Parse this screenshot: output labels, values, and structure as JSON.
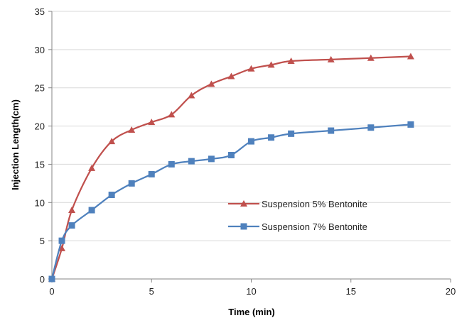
{
  "chart_data": {
    "type": "line",
    "title": "",
    "xlabel": "Time (min)",
    "ylabel": "Injection Length(cm)",
    "xlim": [
      0,
      20
    ],
    "ylim": [
      0,
      35
    ],
    "x_ticks": [
      0,
      5,
      10,
      15,
      20
    ],
    "x_tick_labels": [
      "0",
      "5",
      "10",
      "15",
      "20"
    ],
    "y_ticks": [
      0,
      5,
      10,
      15,
      20,
      25,
      30,
      35
    ],
    "y_tick_labels": [
      "0",
      "5",
      "10",
      "15",
      "20",
      "25",
      "30",
      "35"
    ],
    "grid": "horizontal",
    "legend_position": "center-right",
    "series": [
      {
        "name": "Suspension 5% Bentonite",
        "color": "#c0504d",
        "marker": "triangle",
        "x": [
          0,
          0.5,
          1,
          2,
          3,
          4,
          5,
          6,
          7,
          8,
          9,
          10,
          11,
          12,
          14,
          16,
          18
        ],
        "y": [
          0,
          4,
          9,
          14.5,
          18,
          19.5,
          20.5,
          21.5,
          24,
          25.5,
          26.5,
          27.5,
          28,
          28.5,
          28.7,
          28.9,
          29.1
        ]
      },
      {
        "name": "Suspension 7% Bentonite",
        "color": "#4f81bd",
        "marker": "square",
        "x": [
          0,
          0.5,
          1,
          2,
          3,
          4,
          5,
          6,
          7,
          8,
          9,
          10,
          11,
          12,
          14,
          16,
          18
        ],
        "y": [
          0,
          5,
          7,
          9,
          11,
          12.5,
          13.7,
          15,
          15.4,
          15.7,
          16.2,
          18,
          18.5,
          19,
          19.4,
          19.8,
          20.2
        ]
      }
    ]
  }
}
